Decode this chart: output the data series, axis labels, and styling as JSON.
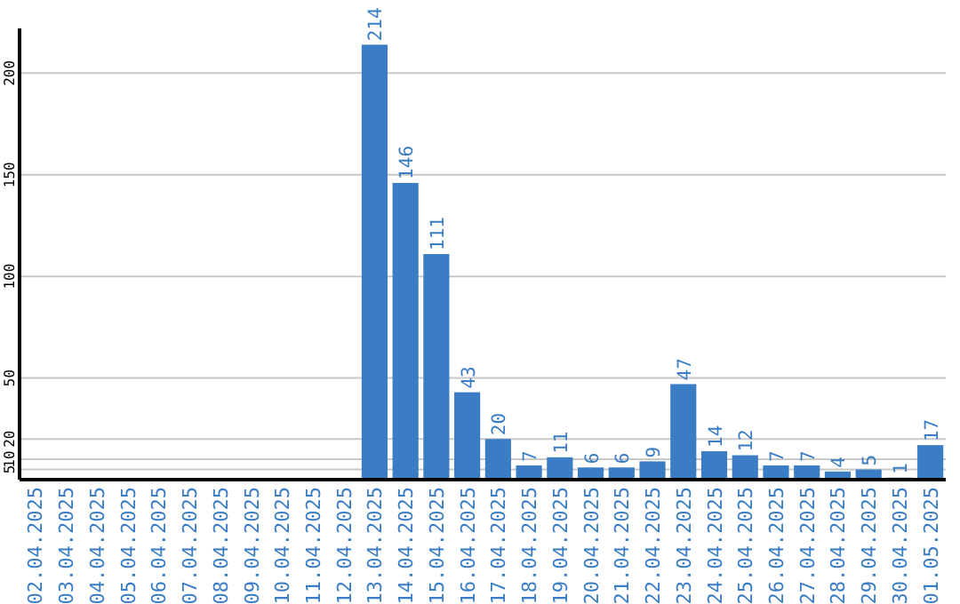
{
  "chart_data": {
    "type": "bar",
    "categories": [
      "02.04.2025",
      "03.04.2025",
      "04.04.2025",
      "05.04.2025",
      "06.04.2025",
      "07.04.2025",
      "08.04.2025",
      "09.04.2025",
      "10.04.2025",
      "11.04.2025",
      "12.04.2025",
      "13.04.2025",
      "14.04.2025",
      "15.04.2025",
      "16.04.2025",
      "17.04.2025",
      "18.04.2025",
      "19.04.2025",
      "20.04.2025",
      "21.04.2025",
      "22.04.2025",
      "23.04.2025",
      "24.04.2025",
      "25.04.2025",
      "26.04.2025",
      "27.04.2025",
      "28.04.2025",
      "29.04.2025",
      "30.04.2025",
      "01.05.2025"
    ],
    "values": [
      null,
      null,
      null,
      null,
      null,
      null,
      null,
      null,
      null,
      null,
      null,
      214,
      146,
      111,
      43,
      20,
      7,
      11,
      6,
      6,
      9,
      47,
      14,
      12,
      7,
      7,
      4,
      5,
      1,
      17
    ],
    "color": "#3a7dc4",
    "ylim": [
      0,
      222
    ],
    "yticks": [
      5,
      10,
      20,
      50,
      100,
      150,
      200
    ],
    "grid": "y",
    "data_labels": true
  }
}
